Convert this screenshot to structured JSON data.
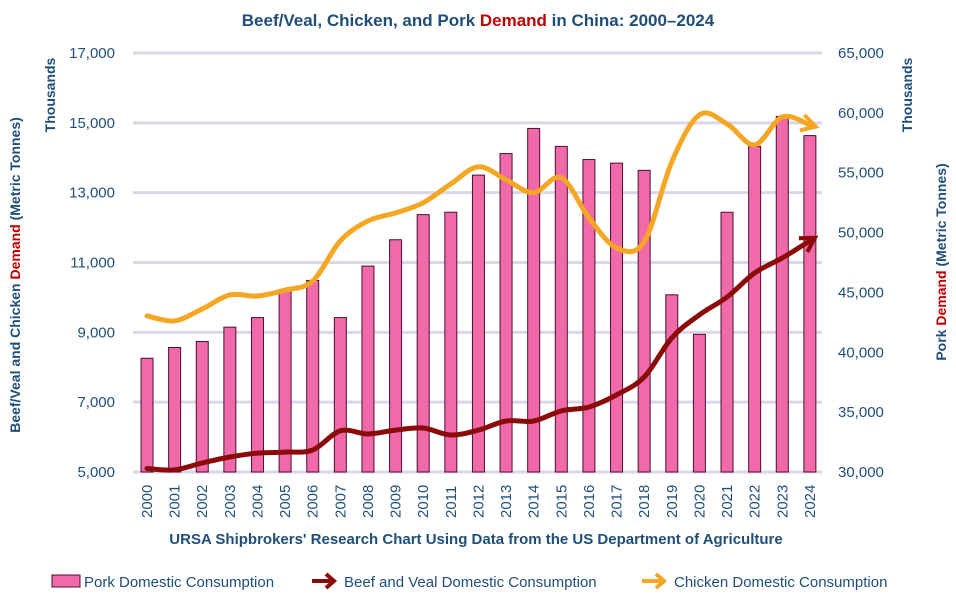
{
  "chart_data": {
    "type": "bar",
    "title_parts": [
      "Beef/Veal, Chicken, and Pork ",
      "Demand",
      " in China: 2000–2024"
    ],
    "xlabel": "URSA Shipbrokers' Research Chart Using Data from the US Department of Agriculture",
    "ylabel_left_parts": [
      "Beef/Veal and Chicken ",
      "Demand",
      " (Metric Tonnes)"
    ],
    "ylabel_left_unit": "Thousands",
    "ylabel_right_parts": [
      "Pork ",
      "Demand",
      " (Metric Tonnes)"
    ],
    "ylabel_right_unit": "Thousands",
    "ylim_left": [
      5000,
      17000
    ],
    "ylim_right": [
      30000,
      65000
    ],
    "left_ticks": [
      "5,000",
      "7,000",
      "9,000",
      "11,000",
      "13,000",
      "15,000",
      "17,000"
    ],
    "right_ticks": [
      "30,000",
      "35,000",
      "40,000",
      "45,000",
      "50,000",
      "55,000",
      "60,000",
      "65,000"
    ],
    "grid": true,
    "legend_position": "bottom",
    "categories": [
      "2000",
      "2001",
      "2002",
      "2003",
      "2004",
      "2005",
      "2006",
      "2007",
      "2008",
      "2009",
      "2010",
      "2011",
      "2012",
      "2013",
      "2014",
      "2015",
      "2016",
      "2017",
      "2018",
      "2019",
      "2020",
      "2021",
      "2022",
      "2023",
      "2024"
    ],
    "series": [
      {
        "name": "Pork Domestic Consumption",
        "type": "bar",
        "axis": "right",
        "color": "#f06aaa",
        "values": [
          39500,
          40400,
          40900,
          42100,
          42900,
          45200,
          46000,
          42900,
          47200,
          49400,
          51500,
          51700,
          54800,
          56600,
          58700,
          57200,
          56100,
          55800,
          55200,
          44800,
          41500,
          51700,
          57200,
          59700,
          58100
        ]
      },
      {
        "name": "Beef and Veal Domestic Consumption",
        "type": "line",
        "axis": "left",
        "color": "#8b0a0a",
        "values": [
          5100,
          5060,
          5260,
          5430,
          5540,
          5570,
          5630,
          6180,
          6090,
          6200,
          6260,
          6060,
          6200,
          6460,
          6460,
          6750,
          6860,
          7210,
          7720,
          8840,
          9500,
          10010,
          10700,
          11130,
          11620
        ]
      },
      {
        "name": "Chicken Domestic Consumption",
        "type": "line",
        "axis": "left",
        "color": "#f5a623",
        "values": [
          9470,
          9330,
          9670,
          10070,
          10040,
          10210,
          10470,
          11620,
          12190,
          12420,
          12710,
          13250,
          13740,
          13370,
          13000,
          13430,
          12280,
          11420,
          11590,
          13880,
          15230,
          14970,
          14370,
          15170,
          14940
        ]
      }
    ]
  }
}
